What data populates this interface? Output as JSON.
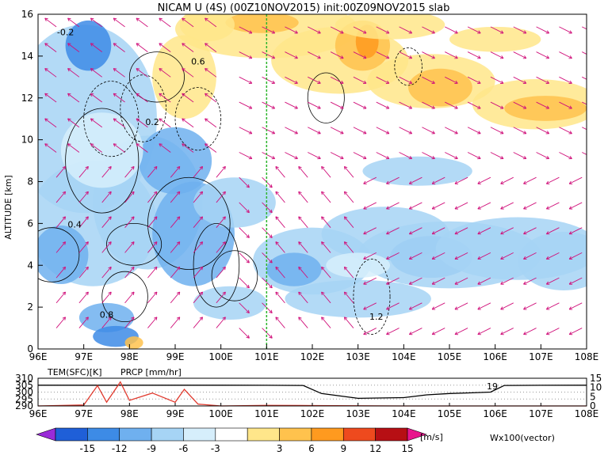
{
  "chart_data": [
    {
      "type": "heatmap",
      "title": "NICAM U (4S) (00Z10NOV2015) init:00Z09NOV2015 slab",
      "xlabel": "",
      "ylabel": "ALTITUDE [km]",
      "x_ticks": [
        "96E",
        "97E",
        "98E",
        "99E",
        "100E",
        "101E",
        "102E",
        "103E",
        "104E",
        "105E",
        "106E",
        "107E",
        "108E"
      ],
      "y_ticks": [
        "0",
        "2",
        "4",
        "6",
        "8",
        "10",
        "12",
        "14",
        "16"
      ],
      "xlim": [
        96,
        108
      ],
      "ylim": [
        0,
        16
      ],
      "marker_longitude": 101,
      "colorbar": {
        "labels": [
          "-15",
          "-12",
          "-9",
          "-6",
          "-3",
          "3",
          "6",
          "9",
          "12",
          "15"
        ],
        "unit": "[m/s]",
        "colors": [
          "#9a2bd8",
          "#1f5fd8",
          "#3d8be6",
          "#6fb0ef",
          "#a6d4f5",
          "#d6eefb",
          "#ffffff",
          "#ffe68a",
          "#ffc24d",
          "#ff9a1f",
          "#ee4a1e",
          "#b70f14",
          "#e8158c"
        ]
      },
      "vector_legend": "Wx100(vector)",
      "contour_labels": [
        "-0.2",
        "0.2",
        "0.4",
        "0.6",
        "0.8",
        "1.2"
      ]
    },
    {
      "type": "line",
      "series": [
        {
          "name": "TEM(SFC)[K]",
          "x": [
            96,
            97,
            97.5,
            98,
            99,
            100,
            101,
            101.8,
            102.2,
            103,
            104,
            104.5,
            105,
            105.5,
            105.9,
            106.2,
            107,
            108
          ],
          "values": [
            305,
            305,
            305,
            305,
            305,
            305,
            304.9,
            304.8,
            299,
            295.5,
            296,
            298,
            299,
            299.5,
            300,
            304.8,
            304.9,
            305
          ]
        },
        {
          "name": "PRCP [mm/hr]",
          "x": [
            96,
            97,
            97.3,
            97.5,
            97.8,
            98,
            98.5,
            99,
            99.2,
            99.5,
            100,
            101,
            102,
            103,
            104,
            108
          ],
          "values": [
            0,
            0.5,
            11,
            2,
            13,
            3,
            7,
            2,
            9,
            1,
            0,
            0.3,
            0.2,
            0.1,
            0,
            0
          ]
        }
      ],
      "x_ticks": [
        "96E",
        "97E",
        "98E",
        "99E",
        "100E",
        "101E",
        "102E",
        "103E",
        "104E",
        "105E",
        "106E",
        "107E",
        "108E"
      ],
      "y_ticks_left": [
        "290",
        "295",
        "300",
        "305",
        "310"
      ],
      "y_ticks_right": [
        "0",
        "5",
        "10",
        "15"
      ],
      "annotation": "19",
      "ylim_left": [
        290,
        310
      ],
      "ylim_right": [
        0,
        15
      ]
    }
  ]
}
